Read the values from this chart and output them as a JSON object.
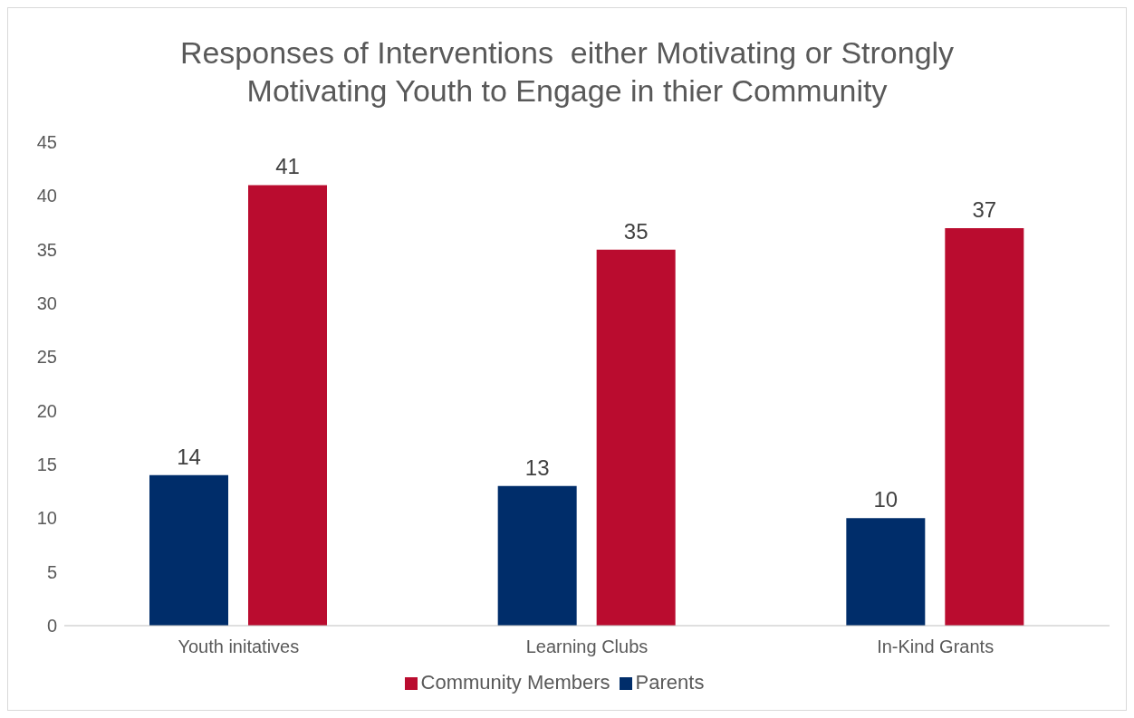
{
  "chart_data": {
    "type": "bar",
    "title": "Responses of Interventions  either Motivating or Strongly Motivating Youth to Engage in thier Community",
    "categories": [
      "Youth initatives",
      "Learning Clubs",
      "In-Kind Grants"
    ],
    "series": [
      {
        "name": "Parents",
        "color": "#002d6a",
        "values": [
          14,
          13,
          10
        ]
      },
      {
        "name": "Community Members",
        "color": "#ba0c2f",
        "values": [
          41,
          35,
          37
        ]
      }
    ],
    "ylim": [
      0,
      45
    ],
    "yticks": [
      0,
      5,
      10,
      15,
      20,
      25,
      30,
      35,
      40,
      45
    ],
    "legend": "bottom",
    "data_labels": true
  }
}
